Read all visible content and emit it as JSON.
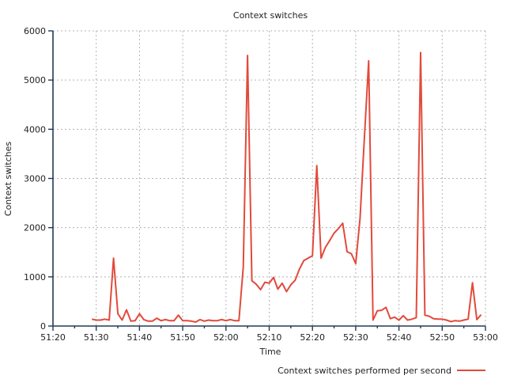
{
  "chart_data": {
    "type": "line",
    "title": "Context switches",
    "xlabel": "Time",
    "ylabel": "Context switches",
    "xlim": [
      "51:20",
      "53:00"
    ],
    "ylim": [
      0,
      6000
    ],
    "x_tick_labels": [
      "51:20",
      "51:30",
      "51:40",
      "51:50",
      "52:00",
      "52:10",
      "52:20",
      "52:30",
      "52:40",
      "52:50",
      "53:00"
    ],
    "y_tick_labels": [
      "0",
      "1000",
      "2000",
      "3000",
      "4000",
      "5000",
      "6000"
    ],
    "grid": true,
    "legend_position": "bottom-right",
    "series": [
      {
        "name": "Context switches performed per second",
        "color": "#e24a3b",
        "x": [
          "51:29",
          "51:30",
          "51:31",
          "51:32",
          "51:33",
          "51:34",
          "51:35",
          "51:36",
          "51:37",
          "51:38",
          "51:39",
          "51:40",
          "51:41",
          "51:42",
          "51:43",
          "51:44",
          "51:45",
          "51:46",
          "51:47",
          "51:48",
          "51:49",
          "51:50",
          "51:51",
          "51:52",
          "51:53",
          "51:54",
          "51:55",
          "51:56",
          "51:57",
          "51:58",
          "51:59",
          "52:00",
          "52:01",
          "52:02",
          "52:03",
          "52:04",
          "52:05",
          "52:06",
          "52:07",
          "52:08",
          "52:09",
          "52:10",
          "52:11",
          "52:12",
          "52:13",
          "52:14",
          "52:15",
          "52:16",
          "52:17",
          "52:18",
          "52:19",
          "52:20",
          "52:21",
          "52:22",
          "52:23",
          "52:24",
          "52:25",
          "52:26",
          "52:27",
          "52:28",
          "52:29",
          "52:30",
          "52:31",
          "52:32",
          "52:33",
          "52:34",
          "52:35",
          "52:36",
          "52:37",
          "52:38",
          "52:39",
          "52:40",
          "52:41",
          "52:42",
          "52:43",
          "52:44",
          "52:45",
          "52:46",
          "52:47",
          "52:48",
          "52:49",
          "52:50",
          "52:51",
          "52:52",
          "52:53",
          "52:54",
          "52:55",
          "52:56",
          "52:57",
          "52:58",
          "52:59"
        ],
        "y": [
          140,
          120,
          120,
          140,
          120,
          1380,
          250,
          120,
          330,
          100,
          110,
          250,
          130,
          100,
          100,
          160,
          110,
          130,
          110,
          110,
          220,
          110,
          110,
          100,
          80,
          130,
          100,
          120,
          110,
          110,
          130,
          110,
          130,
          110,
          110,
          1200,
          5500,
          920,
          850,
          740,
          890,
          870,
          990,
          750,
          870,
          700,
          840,
          930,
          1160,
          1330,
          1380,
          1430,
          3260,
          1380,
          1600,
          1740,
          1890,
          1980,
          2090,
          1510,
          1470,
          1270,
          2190,
          3800,
          5390,
          120,
          310,
          320,
          380,
          150,
          180,
          120,
          210,
          120,
          140,
          170,
          5560,
          220,
          200,
          150,
          140,
          140,
          120,
          90,
          110,
          100,
          120,
          140,
          880,
          130,
          230
        ]
      }
    ]
  }
}
